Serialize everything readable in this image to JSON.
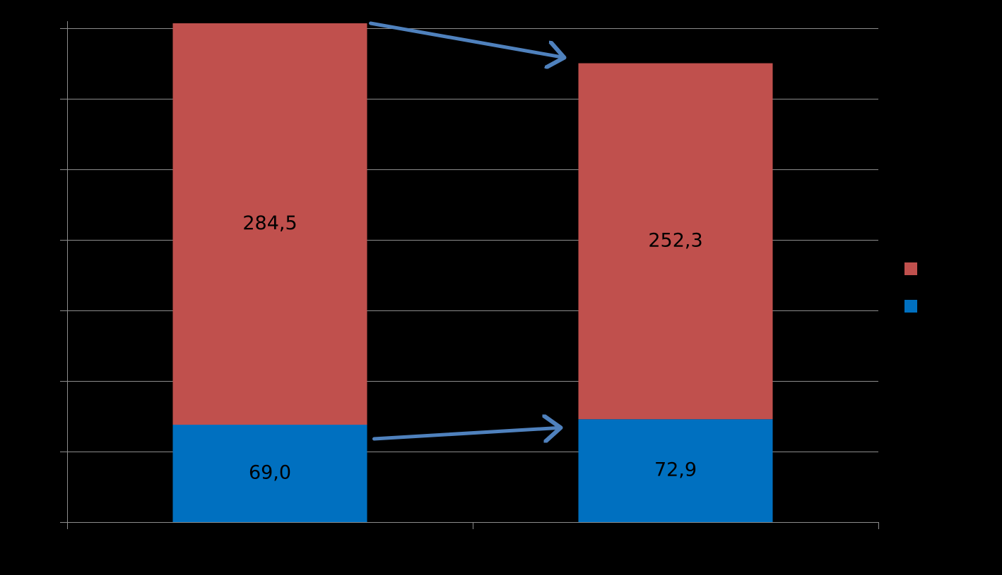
{
  "chart_data": {
    "type": "stacked-bar",
    "categories": [
      "",
      ""
    ],
    "series": [
      {
        "values": [
          69.0,
          72.9
        ],
        "labels": [
          "69,0",
          "72,9"
        ],
        "color": "#0070c0"
      },
      {
        "values": [
          284.5,
          252.3
        ],
        "labels": [
          "284,5",
          "252,3"
        ],
        "color": "#c0504d"
      }
    ],
    "ylim": [
      0,
      350
    ],
    "ytick_step": 50,
    "grid": true,
    "legend": "right",
    "annotations": [
      "arrow from bar 1 top to bar 2 top",
      "arrow from bar 1 base segment to bar 2 base segment"
    ],
    "background": "#000000"
  }
}
